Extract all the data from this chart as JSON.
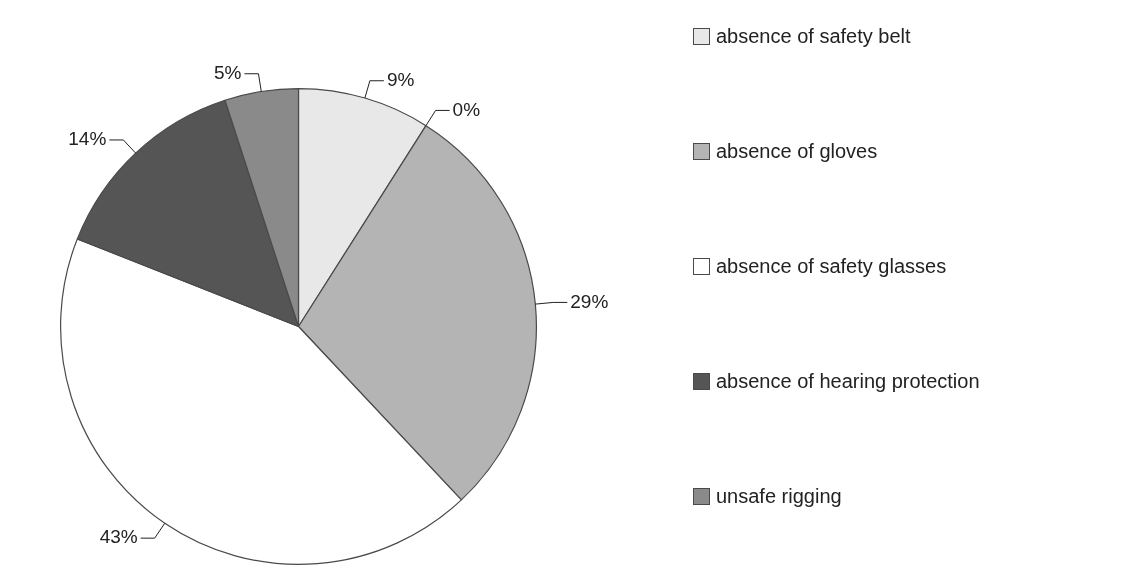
{
  "chart_data": {
    "type": "pie",
    "categories": [
      "absence of safety belt",
      null,
      "absence of gloves",
      "absence of safety glasses",
      "absence of hearing protection",
      "unsafe rigging"
    ],
    "values": [
      9,
      0,
      29,
      43,
      14,
      5
    ],
    "value_labels": [
      "9%",
      "0%",
      "29%",
      "43%",
      "14%",
      "5%"
    ],
    "colors": [
      "#e8e8e8",
      "#d0d0d0",
      "#b4b4b4",
      "#ffffff",
      "#555555",
      "#8a8a8a"
    ],
    "legend": "right"
  }
}
